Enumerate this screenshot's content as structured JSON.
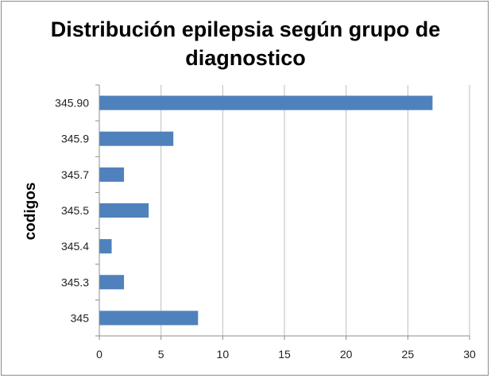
{
  "chart_data": {
    "type": "bar",
    "orientation": "horizontal",
    "title": "Distribución epilepsia según grupo de diagnostico",
    "title_lines": [
      "Distribución epilepsia según grupo de",
      "diagnostico"
    ],
    "ylabel": "codigos",
    "xlabel": "",
    "categories": [
      "345.90",
      "345.9",
      "345.7",
      "345.5",
      "345.4",
      "345.3",
      "345"
    ],
    "values": [
      27,
      6,
      2,
      4,
      1,
      2,
      8
    ],
    "xlim": [
      0,
      30
    ],
    "xticks": [
      "0",
      "5",
      "10",
      "15",
      "20",
      "25",
      "30"
    ],
    "grid": "vertical",
    "legend": "none",
    "colors": {
      "bar": "#4f81bd",
      "grid": "#bdbdbd",
      "axis": "#8c8c8c"
    }
  }
}
